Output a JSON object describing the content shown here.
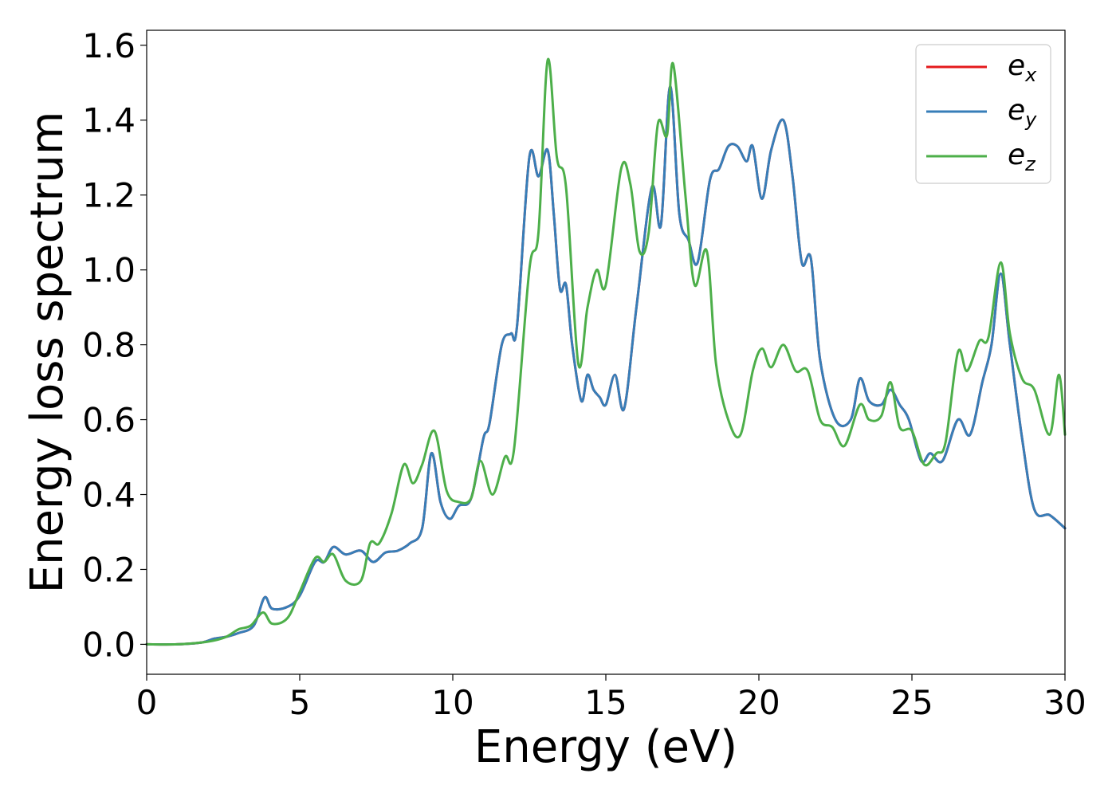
{
  "chart_data": {
    "type": "line",
    "xlabel": "Energy (eV)",
    "ylabel": "Energy loss spectrum",
    "xlim": [
      0,
      30
    ],
    "ylim": [
      -0.08,
      1.64
    ],
    "xticks": [
      "0",
      "5",
      "10",
      "15",
      "20",
      "25",
      "30"
    ],
    "yticks": [
      "0.0",
      "0.2",
      "0.4",
      "0.6",
      "0.8",
      "1.0",
      "1.2",
      "1.4",
      "1.6"
    ],
    "grid": false,
    "legend_position": "top-right",
    "series": [
      {
        "name": "e_x",
        "label_main": "e",
        "label_sub": "x",
        "color": "#e41a1c",
        "x": [
          0,
          1,
          1.8,
          2.2,
          2.6,
          3,
          3.5,
          3.85,
          4.1,
          4.6,
          5,
          5.5,
          5.8,
          6.1,
          6.5,
          7,
          7.4,
          7.8,
          8.2,
          8.6,
          9,
          9.3,
          9.6,
          9.9,
          10.2,
          10.6,
          11,
          11.2,
          11.6,
          11.9,
          12.1,
          12.5,
          12.8,
          13.1,
          13.3,
          13.5,
          13.7,
          13.9,
          14.2,
          14.4,
          14.6,
          14.8,
          15,
          15.3,
          15.6,
          16,
          16.5,
          16.8,
          17.1,
          17.4,
          17.7,
          18,
          18.4,
          18.7,
          19,
          19.3,
          19.6,
          19.8,
          20.1,
          20.4,
          20.8,
          21.1,
          21.4,
          21.7,
          22,
          22.5,
          23,
          23.3,
          23.6,
          24,
          24.3,
          24.6,
          24.9,
          25.3,
          25.6,
          26,
          26.5,
          26.9,
          27.3,
          27.6,
          27.9,
          28.2,
          28.6,
          29,
          29.5,
          30
        ],
        "y": [
          0,
          0,
          0.005,
          0.015,
          0.02,
          0.03,
          0.05,
          0.125,
          0.095,
          0.1,
          0.13,
          0.22,
          0.22,
          0.26,
          0.24,
          0.25,
          0.22,
          0.245,
          0.25,
          0.27,
          0.31,
          0.51,
          0.38,
          0.335,
          0.37,
          0.39,
          0.55,
          0.59,
          0.8,
          0.83,
          0.85,
          1.3,
          1.25,
          1.32,
          1.15,
          0.95,
          0.96,
          0.8,
          0.65,
          0.72,
          0.68,
          0.66,
          0.64,
          0.72,
          0.63,
          0.9,
          1.22,
          1.12,
          1.49,
          1.15,
          1.08,
          1.02,
          1.24,
          1.27,
          1.33,
          1.33,
          1.29,
          1.33,
          1.19,
          1.32,
          1.4,
          1.25,
          1.02,
          1.03,
          0.76,
          0.6,
          0.6,
          0.71,
          0.65,
          0.64,
          0.68,
          0.64,
          0.6,
          0.49,
          0.51,
          0.49,
          0.6,
          0.56,
          0.7,
          0.8,
          0.99,
          0.8,
          0.55,
          0.36,
          0.345,
          0.31
        ]
      },
      {
        "name": "e_y",
        "label_main": "e",
        "label_sub": "y",
        "color": "#377eb8",
        "x": [
          0,
          1,
          1.8,
          2.2,
          2.6,
          3,
          3.5,
          3.85,
          4.1,
          4.6,
          5,
          5.5,
          5.8,
          6.1,
          6.5,
          7,
          7.4,
          7.8,
          8.2,
          8.6,
          9,
          9.3,
          9.6,
          9.9,
          10.2,
          10.6,
          11,
          11.2,
          11.6,
          11.9,
          12.1,
          12.5,
          12.8,
          13.1,
          13.3,
          13.5,
          13.7,
          13.9,
          14.2,
          14.4,
          14.6,
          14.8,
          15,
          15.3,
          15.6,
          16,
          16.5,
          16.8,
          17.1,
          17.4,
          17.7,
          18,
          18.4,
          18.7,
          19,
          19.3,
          19.6,
          19.8,
          20.1,
          20.4,
          20.8,
          21.1,
          21.4,
          21.7,
          22,
          22.5,
          23,
          23.3,
          23.6,
          24,
          24.3,
          24.6,
          24.9,
          25.3,
          25.6,
          26,
          26.5,
          26.9,
          27.3,
          27.6,
          27.9,
          28.2,
          28.6,
          29,
          29.5,
          30
        ],
        "y": [
          0,
          0,
          0.005,
          0.015,
          0.02,
          0.03,
          0.05,
          0.125,
          0.095,
          0.1,
          0.13,
          0.22,
          0.22,
          0.26,
          0.24,
          0.25,
          0.22,
          0.245,
          0.25,
          0.27,
          0.31,
          0.51,
          0.38,
          0.335,
          0.37,
          0.39,
          0.55,
          0.59,
          0.8,
          0.83,
          0.85,
          1.3,
          1.25,
          1.32,
          1.15,
          0.95,
          0.96,
          0.8,
          0.65,
          0.72,
          0.68,
          0.66,
          0.64,
          0.72,
          0.63,
          0.9,
          1.22,
          1.12,
          1.49,
          1.15,
          1.08,
          1.02,
          1.24,
          1.27,
          1.33,
          1.33,
          1.29,
          1.33,
          1.19,
          1.32,
          1.4,
          1.25,
          1.02,
          1.03,
          0.76,
          0.6,
          0.6,
          0.71,
          0.65,
          0.64,
          0.68,
          0.64,
          0.6,
          0.49,
          0.51,
          0.49,
          0.6,
          0.56,
          0.7,
          0.8,
          0.99,
          0.8,
          0.55,
          0.36,
          0.345,
          0.31
        ]
      },
      {
        "name": "e_z",
        "label_main": "e",
        "label_sub": "z",
        "color": "#4daf4a",
        "x": [
          0,
          1,
          1.8,
          2.2,
          2.6,
          3,
          3.4,
          3.8,
          4.1,
          4.6,
          5,
          5.5,
          5.8,
          6.1,
          6.5,
          7,
          7.3,
          7.6,
          8,
          8.4,
          8.7,
          9,
          9.4,
          9.8,
          10.2,
          10.6,
          10.9,
          11.3,
          11.7,
          12,
          12.5,
          12.8,
          13.1,
          13.4,
          13.7,
          14.1,
          14.4,
          14.7,
          15,
          15.5,
          15.8,
          16.1,
          16.4,
          16.7,
          17,
          17.2,
          17.6,
          17.9,
          18.3,
          18.6,
          19,
          19.4,
          19.8,
          20.1,
          20.4,
          20.8,
          21.2,
          21.6,
          22,
          22.4,
          22.8,
          23.3,
          23.6,
          24,
          24.3,
          24.6,
          25,
          25.4,
          25.8,
          26.1,
          26.5,
          26.8,
          27.2,
          27.5,
          27.9,
          28.2,
          28.6,
          29,
          29.5,
          29.8,
          30
        ],
        "y": [
          0,
          0,
          0.005,
          0.01,
          0.02,
          0.04,
          0.05,
          0.085,
          0.055,
          0.07,
          0.14,
          0.23,
          0.22,
          0.24,
          0.17,
          0.17,
          0.27,
          0.27,
          0.35,
          0.48,
          0.43,
          0.48,
          0.57,
          0.41,
          0.38,
          0.39,
          0.49,
          0.4,
          0.5,
          0.52,
          1.0,
          1.1,
          1.56,
          1.3,
          1.22,
          0.75,
          0.9,
          1.0,
          0.96,
          1.27,
          1.23,
          1.05,
          1.1,
          1.39,
          1.36,
          1.55,
          1.2,
          0.96,
          1.05,
          0.75,
          0.6,
          0.56,
          0.73,
          0.79,
          0.74,
          0.8,
          0.73,
          0.73,
          0.6,
          0.58,
          0.53,
          0.64,
          0.6,
          0.61,
          0.7,
          0.58,
          0.57,
          0.48,
          0.51,
          0.54,
          0.78,
          0.73,
          0.81,
          0.82,
          1.02,
          0.83,
          0.71,
          0.68,
          0.56,
          0.72,
          0.56
        ]
      }
    ]
  }
}
